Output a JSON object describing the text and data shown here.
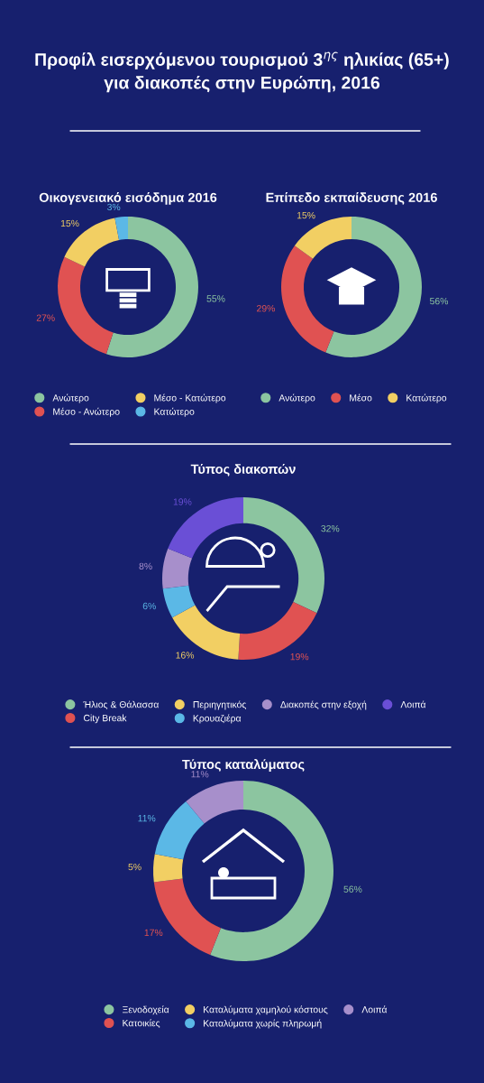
{
  "chart_data": [
    {
      "type": "other",
      "title": "Προφίλ εισερχόμενου τουρισμού 3$^{ης}$ ηλικίας (65+)\nγια διακοπές στην Ευρώπη, 2016"
    },
    {
      "type": "donut",
      "title": "Οικογενειακό εισόδημα 2016",
      "legend": "bottom",
      "categories": [
        "Ανώτερο",
        "Μέσο - Ανώτερο",
        "Μέσο - Κατώτερο",
        "Κατώτερο"
      ],
      "values": [
        55,
        27,
        15,
        3
      ],
      "value_labels": [
        "55%",
        "27%",
        "15%",
        "3%"
      ],
      "colors": [
        "#8cc5a0",
        "#e05252",
        "#f2cf63",
        "#5bb8e6"
      ]
    },
    {
      "type": "donut",
      "title": "Επίπεδο εκπαίδευσης 2016",
      "legend": "bottom",
      "categories": [
        "Ανώτερο",
        "Μέσο",
        "Κατώτερο"
      ],
      "values": [
        56,
        29,
        15
      ],
      "value_labels": [
        "56%",
        "29%",
        "15%"
      ],
      "colors": [
        "#8cc5a0",
        "#e05252",
        "#f2cf63"
      ]
    },
    {
      "type": "donut",
      "title": "Τύπος διακοπών",
      "legend": "bottom",
      "categories": [
        "Ήλιος & Θάλασσα",
        "City Break",
        "Περιηγητικός",
        "Κρουαζιέρα",
        "Διακοπές στην εξοχή",
        "Λοιπά"
      ],
      "values": [
        32,
        19,
        16,
        6,
        8,
        19
      ],
      "value_labels": [
        "32%",
        "19%",
        "16%",
        "6%",
        "8%",
        "19%"
      ],
      "colors": [
        "#8cc5a0",
        "#e05252",
        "#f2cf63",
        "#5bb8e6",
        "#a78fcb",
        "#6a4fd6"
      ]
    },
    {
      "type": "donut",
      "title": "Τύπος καταλύματος",
      "legend": "bottom",
      "categories": [
        "Ξενοδοχεία",
        "Κατοικίες",
        "Καταλύματα χαμηλού κόστους",
        "Καταλύματα χωρίς πληρωμή",
        "Λοιπά"
      ],
      "values": [
        56,
        17,
        5,
        11,
        11
      ],
      "value_labels": [
        "56%",
        "17%",
        "5%",
        "11%",
        "11%"
      ],
      "colors": [
        "#8cc5a0",
        "#e05252",
        "#f2cf63",
        "#5bb8e6",
        "#a78fcb"
      ]
    }
  ]
}
